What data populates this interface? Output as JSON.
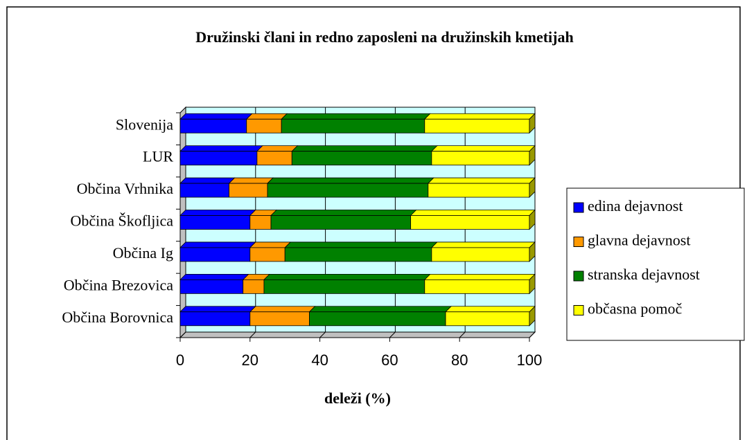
{
  "chart_data": {
    "type": "stacked_barh",
    "title": "Družinski člani in redno zaposleni na družinskih kmetijah",
    "x_label": "deleži (%)",
    "categories": [
      "Občina Borovnica",
      "Občina Brezovica",
      "Občina Ig",
      "Občina Škofljica",
      "Občina Vrhnika",
      "LUR",
      "Slovenija"
    ],
    "series": [
      {
        "name": "edina dejavnost",
        "color": "#0000ff",
        "values": [
          20,
          18,
          20,
          20,
          14,
          22,
          19
        ]
      },
      {
        "name": "glavna dejavnost",
        "color": "#ff9900",
        "values": [
          17,
          6,
          10,
          6,
          11,
          10,
          10
        ]
      },
      {
        "name": "stranska dejavnost",
        "color": "#008000",
        "values": [
          39,
          46,
          42,
          40,
          46,
          40,
          41
        ]
      },
      {
        "name": "občasna pomoč",
        "color": "#ffff00",
        "values": [
          24,
          30,
          28,
          34,
          29,
          28,
          30
        ]
      }
    ],
    "xlim": [
      0,
      100
    ],
    "xticks": [
      0,
      20,
      40,
      60,
      80,
      100
    ],
    "grid": true,
    "legend": "right"
  }
}
